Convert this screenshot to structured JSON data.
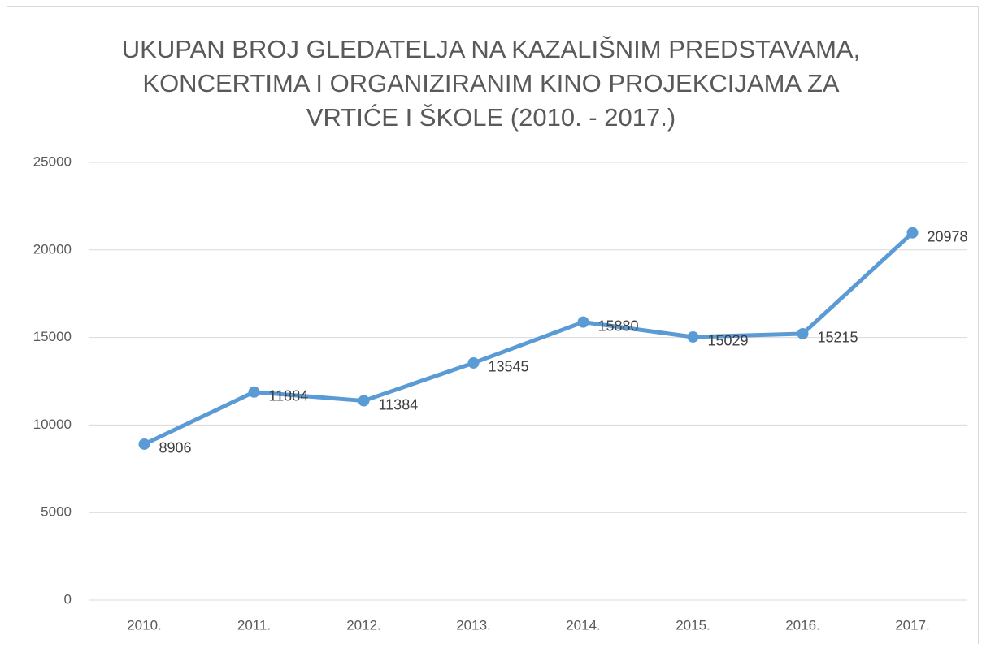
{
  "chart_data": {
    "type": "line",
    "title": [
      "UKUPAN BROJ GLEDATELJA NA KAZALIŠNIM PREDSTAVAMA,",
      "KONCERTIMA I ORGANIZIRANIM KINO PROJEKCIJAMA ZA",
      "VRTIĆE I ŠKOLE (2010. - 2017.)"
    ],
    "categories": [
      "2010.",
      "2011.",
      "2012.",
      "2013.",
      "2014.",
      "2015.",
      "2016.",
      "2017."
    ],
    "values": [
      8906,
      11884,
      11384,
      13545,
      15880,
      15029,
      15215,
      20978
    ],
    "color": "#5b9bd5",
    "ylim": [
      0,
      25000
    ],
    "yticks": [
      0,
      5000,
      10000,
      15000,
      20000,
      25000
    ],
    "grid": true
  }
}
